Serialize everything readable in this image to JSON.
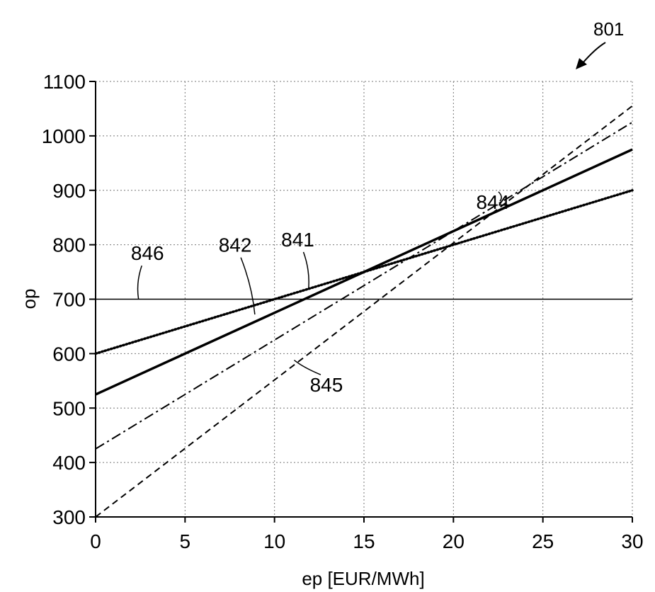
{
  "figure_label": "801",
  "chart_data": {
    "type": "line",
    "title": "",
    "xlabel": "ep [EUR/MWh]",
    "ylabel": "op",
    "xlim": [
      0,
      30
    ],
    "ylim": [
      300,
      1100
    ],
    "x_ticks": [
      0,
      5,
      10,
      15,
      20,
      25,
      30
    ],
    "y_ticks": [
      300,
      400,
      500,
      600,
      700,
      800,
      900,
      1000,
      1100
    ],
    "grid": true,
    "legend": "none",
    "series": [
      {
        "name": "841",
        "style": "dotted",
        "x": [
          0,
          30
        ],
        "values": [
          600,
          900
        ]
      },
      {
        "name": "842",
        "style": "solid",
        "x": [
          0,
          30
        ],
        "values": [
          525,
          975
        ]
      },
      {
        "name": "844",
        "style": "dashdot",
        "x": [
          0,
          30
        ],
        "values": [
          425,
          1025
        ]
      },
      {
        "name": "845",
        "style": "dashed",
        "x": [
          0,
          30
        ],
        "values": [
          300,
          1055
        ]
      },
      {
        "name": "846",
        "style": "thin",
        "x": [
          0,
          30
        ],
        "values": [
          700,
          700
        ]
      }
    ],
    "annotations": [
      {
        "label": "846",
        "text_at": [
          2.9,
          772
        ],
        "point_at": [
          2.4,
          700
        ]
      },
      {
        "label": "842",
        "text_at": [
          7.8,
          787
        ],
        "point_at": [
          8.9,
          672
        ]
      },
      {
        "label": "841",
        "text_at": [
          11.3,
          797
        ],
        "point_at": [
          11.9,
          718
        ]
      },
      {
        "label": "844",
        "text_at": [
          22.2,
          866
        ],
        "point_at": [
          22.6,
          880
        ]
      },
      {
        "label": "845",
        "text_at": [
          12.9,
          530
        ],
        "point_at": [
          11.1,
          588
        ]
      }
    ]
  }
}
